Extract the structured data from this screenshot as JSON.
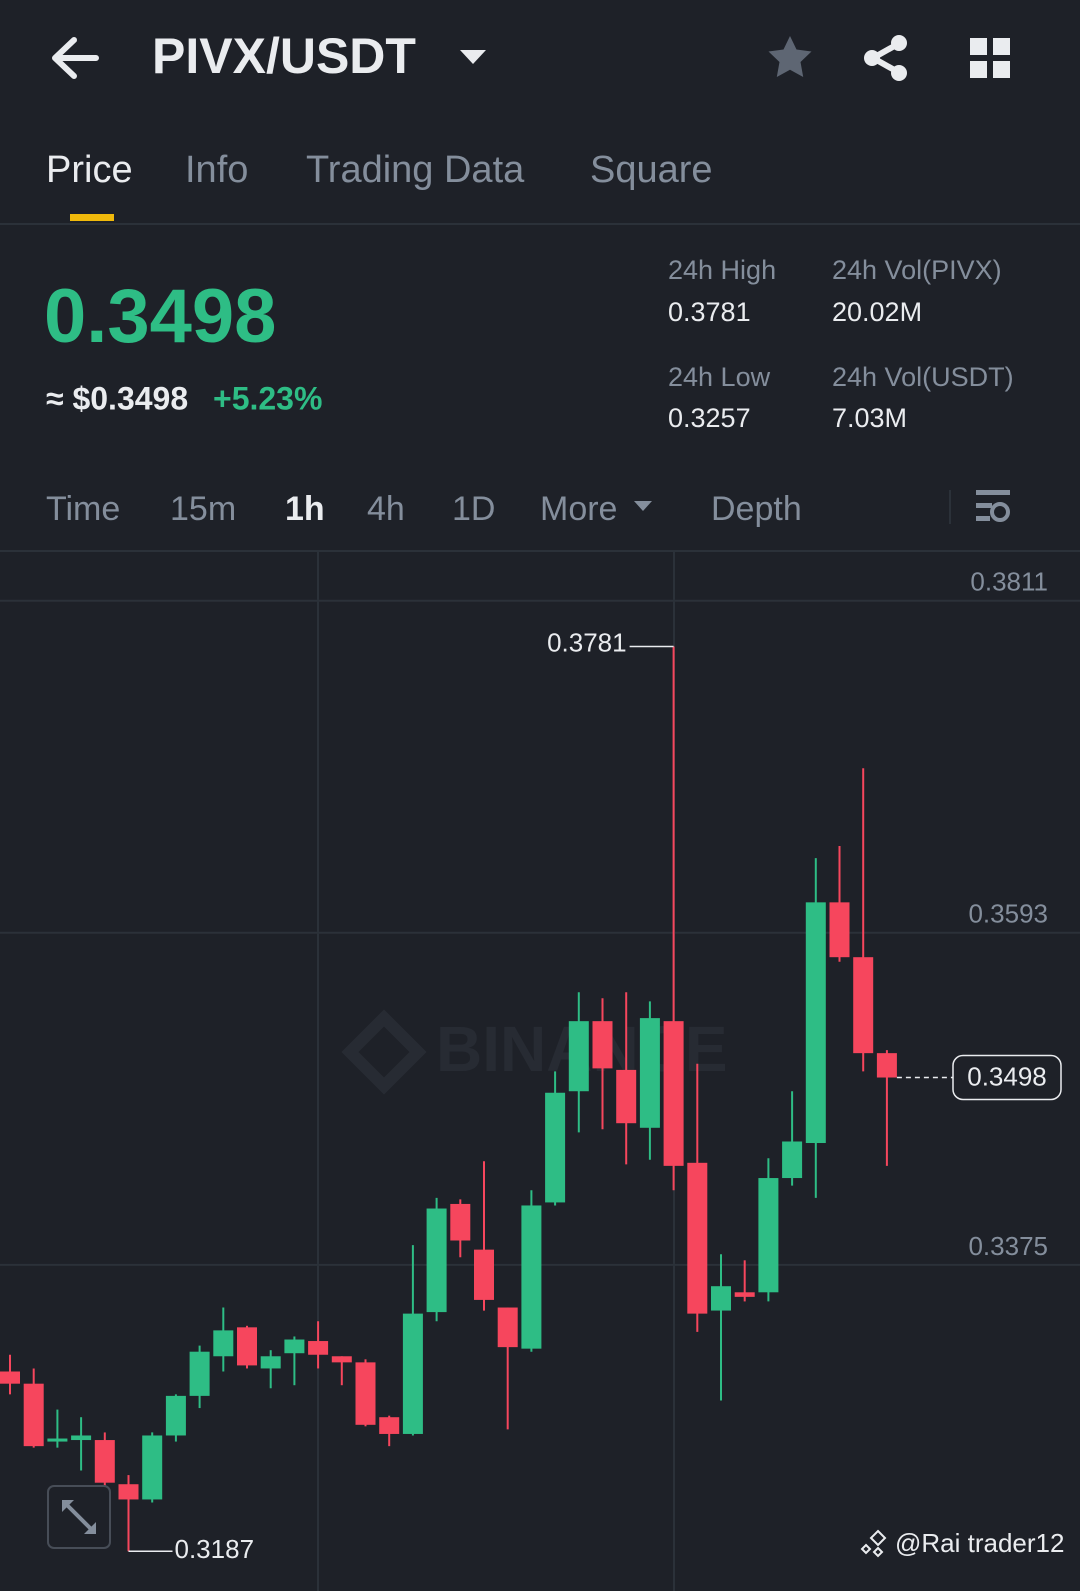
{
  "header": {
    "pair": "PIVX/USDT"
  },
  "tabs": [
    "Price",
    "Info",
    "Trading Data",
    "Square"
  ],
  "ticker": {
    "price": "0.3498",
    "usd": "≈ $0.3498",
    "change": "+5.23%",
    "stats": [
      {
        "label": "24h High",
        "value": "0.3781"
      },
      {
        "label": "24h Vol(PIVX)",
        "value": "20.02M"
      },
      {
        "label": "24h Low",
        "value": "0.3257"
      },
      {
        "label": "24h Vol(USDT)",
        "value": "7.03M"
      }
    ]
  },
  "intervals": [
    "Time",
    "15m",
    "1h",
    "4h",
    "1D",
    "More",
    "Depth"
  ],
  "chart_data": {
    "type": "candlestick",
    "watermark": "BINANCE",
    "up_color": "#2ebd85",
    "down_color": "#f6465d",
    "open": [
      0.3305,
      0.3297,
      0.3259,
      0.326,
      0.326,
      0.3231,
      0.3221,
      0.3263,
      0.3289,
      0.3315,
      0.3334,
      0.3307,
      0.3317,
      0.3325,
      0.3315,
      0.3311,
      0.3275,
      0.3264,
      0.3344,
      0.3415,
      0.3385,
      0.3347,
      0.332,
      0.3416,
      0.3489,
      0.3535,
      0.3503,
      0.3465,
      0.3535,
      0.3442,
      0.3345,
      0.3357,
      0.3357,
      0.3432,
      0.3455,
      0.3613,
      0.3577,
      0.3514
    ],
    "high": [
      0.3316,
      0.3307,
      0.328,
      0.3275,
      0.3265,
      0.3237,
      0.3265,
      0.329,
      0.3322,
      0.3347,
      0.3335,
      0.3319,
      0.3328,
      0.3338,
      0.3315,
      0.3313,
      0.3276,
      0.3388,
      0.3419,
      0.3418,
      0.3443,
      0.3347,
      0.3424,
      0.3502,
      0.3554,
      0.355,
      0.3554,
      0.3548,
      0.3781,
      0.3507,
      0.3382,
      0.3378,
      0.3445,
      0.3489,
      0.3642,
      0.365,
      0.3701,
      0.3516
    ],
    "low": [
      0.329,
      0.3255,
      0.3255,
      0.324,
      0.323,
      0.3187,
      0.3219,
      0.3259,
      0.3281,
      0.3305,
      0.3307,
      0.3294,
      0.3296,
      0.3307,
      0.3296,
      0.3269,
      0.3256,
      0.3263,
      0.3338,
      0.338,
      0.3345,
      0.3267,
      0.3318,
      0.3414,
      0.3462,
      0.3464,
      0.3441,
      0.3444,
      0.3424,
      0.3331,
      0.3286,
      0.3351,
      0.3351,
      0.3427,
      0.3419,
      0.3574,
      0.3502,
      0.344
    ],
    "close": [
      0.3297,
      0.3256,
      0.3261,
      0.3263,
      0.3232,
      0.3221,
      0.3263,
      0.3289,
      0.3318,
      0.3332,
      0.3309,
      0.3315,
      0.3326,
      0.3316,
      0.3311,
      0.327,
      0.3264,
      0.3343,
      0.3412,
      0.3391,
      0.3352,
      0.3321,
      0.3414,
      0.3488,
      0.3535,
      0.3504,
      0.3468,
      0.3537,
      0.344,
      0.3343,
      0.3361,
      0.3354,
      0.3432,
      0.3456,
      0.3613,
      0.3577,
      0.3514,
      0.3498
    ],
    "ylim": [
      0.3176,
      0.3843
    ],
    "yticks": [
      0.3811,
      0.3593,
      0.3375
    ],
    "grid": true
  },
  "footer": {
    "credit": "@Rai trader12"
  }
}
